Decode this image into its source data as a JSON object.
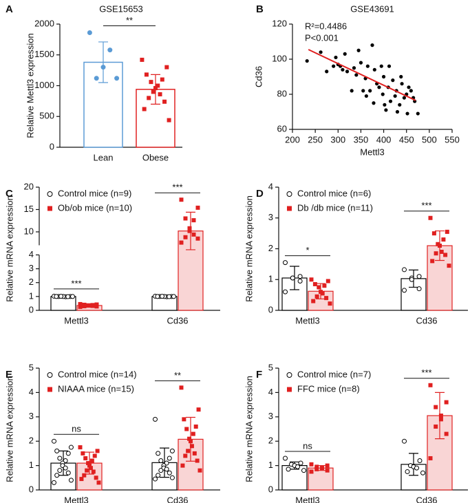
{
  "chart_data": [
    {
      "label": "A",
      "type": "bar",
      "title": "GSE15653",
      "ylabel": "Relative Mettl3 expression",
      "categories": [
        "Lean",
        "Obese"
      ],
      "colors": [
        "#5b9bd5",
        "#e02020"
      ],
      "markers": [
        "circle",
        "square"
      ],
      "values": [
        1380,
        940
      ],
      "errors": [
        330,
        240
      ],
      "points": [
        [
          1860,
          1580,
          1300,
          1120,
          1120
        ],
        [
          1420,
          1300,
          1180,
          1100,
          1060,
          1000,
          960,
          900,
          860,
          800,
          740,
          620,
          440
        ]
      ],
      "ylim": [
        0,
        2000
      ],
      "yticks": [
        0,
        500,
        1000,
        1500,
        2000
      ],
      "significance": [
        "**"
      ]
    },
    {
      "label": "B",
      "type": "scatter",
      "title": "GSE43691",
      "xlabel": "Mettl3",
      "ylabel": "Cd36",
      "color": "#000000",
      "x": [
        232,
        262,
        275,
        290,
        295,
        300,
        305,
        310,
        315,
        320,
        330,
        335,
        340,
        345,
        350,
        355,
        360,
        365,
        370,
        375,
        378,
        380,
        385,
        390,
        395,
        398,
        400,
        405,
        410,
        412,
        415,
        420,
        425,
        428,
        430,
        435,
        438,
        440,
        445,
        450,
        452,
        455,
        460,
        465,
        468,
        475,
        402,
        362
      ],
      "y": [
        99,
        104,
        93,
        96,
        101,
        97,
        96,
        94,
        103,
        93,
        82,
        95,
        91,
        105,
        98,
        82,
        89,
        96,
        82,
        108,
        75,
        94,
        86,
        84,
        96,
        80,
        90,
        71,
        84,
        96,
        76,
        88,
        79,
        82,
        70,
        74,
        90,
        86,
        78,
        80,
        69,
        84,
        82,
        78,
        76,
        69,
        74,
        79
      ],
      "xlim": [
        200,
        550
      ],
      "xticks": [
        200,
        250,
        300,
        350,
        400,
        450,
        500,
        550
      ],
      "ylim": [
        60,
        120
      ],
      "yticks": [
        60,
        80,
        100,
        120
      ],
      "annotations": [
        "R²=0.4486",
        "P<0.001"
      ],
      "fit": {
        "x": [
          235,
          470
        ],
        "y": [
          105.5,
          76.5
        ],
        "color": "#e02020"
      }
    },
    {
      "label": "C",
      "type": "bar",
      "ylabel": "Relative mRNA expression",
      "categories": [
        "Mettl3",
        "Cd36"
      ],
      "ylim": [
        0,
        20
      ],
      "ybreak": [
        4,
        7
      ],
      "yticks": [
        0,
        1,
        2,
        3,
        4,
        10,
        15,
        20
      ],
      "significance": [
        "***",
        "***"
      ],
      "series": [
        {
          "name": "Control mice (n=9)",
          "color": "#000000",
          "fill": "#ffffff",
          "marker": "circle",
          "values": [
            1.0,
            1.0
          ],
          "errors": [
            0.05,
            0.05
          ],
          "points": [
            [
              1.02,
              1.0,
              1.0,
              0.98,
              1.0,
              1.01,
              0.99,
              1.0,
              1.0
            ],
            [
              1.02,
              1.0,
              1.0,
              0.98,
              1.0,
              1.01,
              0.99,
              1.0,
              1.0
            ]
          ]
        },
        {
          "name": "Ob/ob mice (n=10)",
          "color": "#e02020",
          "fill": "#f9d5d5",
          "marker": "square",
          "values": [
            0.35,
            10.2
          ],
          "errors": [
            0.08,
            4.2
          ],
          "points": [
            [
              0.45,
              0.42,
              0.4,
              0.38,
              0.36,
              0.34,
              0.32,
              0.3,
              0.28,
              0.25
            ],
            [
              17.2,
              15.4,
              13.0,
              12.6,
              10.8,
              10.2,
              9.4,
              8.8,
              8.5,
              7.6
            ]
          ]
        }
      ]
    },
    {
      "label": "D",
      "type": "bar",
      "ylabel": "Relative mRNA expression",
      "categories": [
        "Mettl3",
        "Cd36"
      ],
      "ylim": [
        0,
        4
      ],
      "yticks": [
        0,
        1,
        2,
        3,
        4
      ],
      "significance": [
        "*",
        "***"
      ],
      "series": [
        {
          "name": "Control mice (n=6)",
          "color": "#000000",
          "fill": "#ffffff",
          "marker": "circle",
          "values": [
            1.05,
            1.03
          ],
          "errors": [
            0.38,
            0.28
          ],
          "points": [
            [
              1.55,
              1.1,
              1.05,
              1.05,
              0.95,
              0.6
            ],
            [
              1.32,
              1.1,
              1.05,
              1.0,
              0.7,
              0.65
            ]
          ]
        },
        {
          "name": "Db /db mice (n=11)",
          "color": "#e02020",
          "fill": "#f9d5d5",
          "marker": "square",
          "values": [
            0.62,
            2.1
          ],
          "errors": [
            0.25,
            0.48
          ],
          "points": [
            [
              1.0,
              0.95,
              0.85,
              0.8,
              0.75,
              0.6,
              0.55,
              0.45,
              0.4,
              0.3,
              0.22
            ],
            [
              3.0,
              2.55,
              2.5,
              2.3,
              2.15,
              2.1,
              1.9,
              1.85,
              1.8,
              1.6,
              1.45
            ]
          ]
        }
      ]
    },
    {
      "label": "E",
      "type": "bar",
      "ylabel": "Relative mRNA expression",
      "categories": [
        "Mettl3",
        "Cd36"
      ],
      "ylim": [
        0,
        5
      ],
      "yticks": [
        0,
        1,
        2,
        3,
        4,
        5
      ],
      "significance": [
        "ns",
        "**"
      ],
      "series": [
        {
          "name": "Control mice (n=14)",
          "color": "#000000",
          "fill": "#ffffff",
          "marker": "circle",
          "values": [
            1.1,
            1.12
          ],
          "errors": [
            0.5,
            0.6
          ],
          "points": [
            [
              2.0,
              1.75,
              1.6,
              1.5,
              1.3,
              1.2,
              1.1,
              1.0,
              0.9,
              0.8,
              0.7,
              0.6,
              0.4,
              0.3
            ],
            [
              2.9,
              1.6,
              1.5,
              1.3,
              1.2,
              1.1,
              1.0,
              0.9,
              0.85,
              0.8,
              0.7,
              0.6,
              0.5,
              0.45
            ]
          ]
        },
        {
          "name": "NIAAA mice (n=15)",
          "color": "#e02020",
          "fill": "#f9d5d5",
          "marker": "square",
          "values": [
            1.1,
            2.08
          ],
          "errors": [
            0.45,
            0.9
          ],
          "points": [
            [
              1.75,
              1.6,
              1.5,
              1.4,
              1.3,
              1.2,
              1.1,
              1.0,
              0.9,
              0.8,
              0.75,
              0.6,
              0.5,
              0.45,
              0.3
            ],
            [
              4.2,
              3.3,
              2.9,
              2.6,
              2.5,
              2.3,
              2.1,
              2.0,
              1.8,
              1.6,
              1.5,
              1.4,
              1.2,
              1.0,
              0.8
            ]
          ]
        }
      ]
    },
    {
      "label": "F",
      "type": "bar",
      "ylabel": "Relative mRNA expression",
      "categories": [
        "Mettl3",
        "Cd36"
      ],
      "ylim": [
        0,
        5
      ],
      "yticks": [
        0,
        1,
        2,
        3,
        4,
        5
      ],
      "significance": [
        "ns",
        "***"
      ],
      "series": [
        {
          "name": "Control mice (n=7)",
          "color": "#000000",
          "fill": "#ffffff",
          "marker": "circle",
          "values": [
            1.0,
            1.05
          ],
          "errors": [
            0.15,
            0.45
          ],
          "points": [
            [
              1.3,
              1.1,
              1.05,
              1.0,
              0.95,
              0.85,
              0.8
            ],
            [
              2.0,
              1.2,
              1.0,
              0.95,
              0.9,
              0.75,
              0.7
            ]
          ]
        },
        {
          "name": "FFC mice (n=8)",
          "color": "#e02020",
          "fill": "#f9d5d5",
          "marker": "square",
          "values": [
            0.9,
            3.05
          ],
          "errors": [
            0.1,
            0.95
          ],
          "points": [
            [
              1.05,
              1.0,
              0.95,
              0.9,
              0.9,
              0.85,
              0.8,
              0.75
            ],
            [
              4.3,
              3.6,
              3.4,
              3.05,
              2.9,
              2.6,
              2.3,
              1.3
            ]
          ]
        }
      ]
    }
  ]
}
